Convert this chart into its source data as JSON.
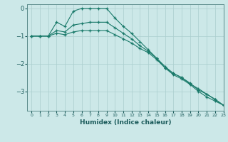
{
  "xlabel": "Humidex (Indice chaleur)",
  "background_color": "#cce8e8",
  "grid_color": "#aacece",
  "line_color": "#1a7a6a",
  "xlim": [
    -0.5,
    23
  ],
  "ylim": [
    -3.7,
    0.15
  ],
  "yticks": [
    0,
    -1,
    -2,
    -3
  ],
  "series": [
    {
      "x": [
        0,
        1,
        2,
        3,
        4,
        5,
        6,
        7,
        8,
        9,
        10,
        11,
        12,
        13,
        14,
        15,
        16,
        17,
        18,
        19,
        20,
        21,
        22,
        23
      ],
      "y": [
        -1.0,
        -1.0,
        -1.0,
        -0.5,
        -0.65,
        -0.1,
        0.0,
        0.0,
        0.0,
        0.0,
        -0.35,
        -0.65,
        -0.9,
        -1.2,
        -1.5,
        -1.8,
        -2.15,
        -2.4,
        -2.55,
        -2.75,
        -3.0,
        -3.2,
        -3.35,
        -3.5
      ]
    },
    {
      "x": [
        0,
        1,
        2,
        3,
        4,
        5,
        6,
        7,
        8,
        9,
        10,
        11,
        12,
        13,
        14,
        15,
        16,
        17,
        18,
        19,
        20,
        21,
        22,
        23
      ],
      "y": [
        -1.0,
        -1.0,
        -1.0,
        -0.8,
        -0.85,
        -0.6,
        -0.55,
        -0.5,
        -0.5,
        -0.5,
        -0.7,
        -0.9,
        -1.1,
        -1.35,
        -1.55,
        -1.8,
        -2.1,
        -2.35,
        -2.5,
        -2.7,
        -2.95,
        -3.1,
        -3.3,
        -3.5
      ]
    },
    {
      "x": [
        0,
        1,
        2,
        3,
        4,
        5,
        6,
        7,
        8,
        9,
        10,
        11,
        12,
        13,
        14,
        15,
        16,
        17,
        18,
        19,
        20,
        21,
        22,
        23
      ],
      "y": [
        -1.0,
        -1.0,
        -1.0,
        -0.9,
        -0.95,
        -0.85,
        -0.8,
        -0.8,
        -0.8,
        -0.8,
        -0.95,
        -1.1,
        -1.25,
        -1.45,
        -1.6,
        -1.85,
        -2.15,
        -2.35,
        -2.5,
        -2.73,
        -2.9,
        -3.1,
        -3.28,
        -3.5
      ]
    }
  ]
}
